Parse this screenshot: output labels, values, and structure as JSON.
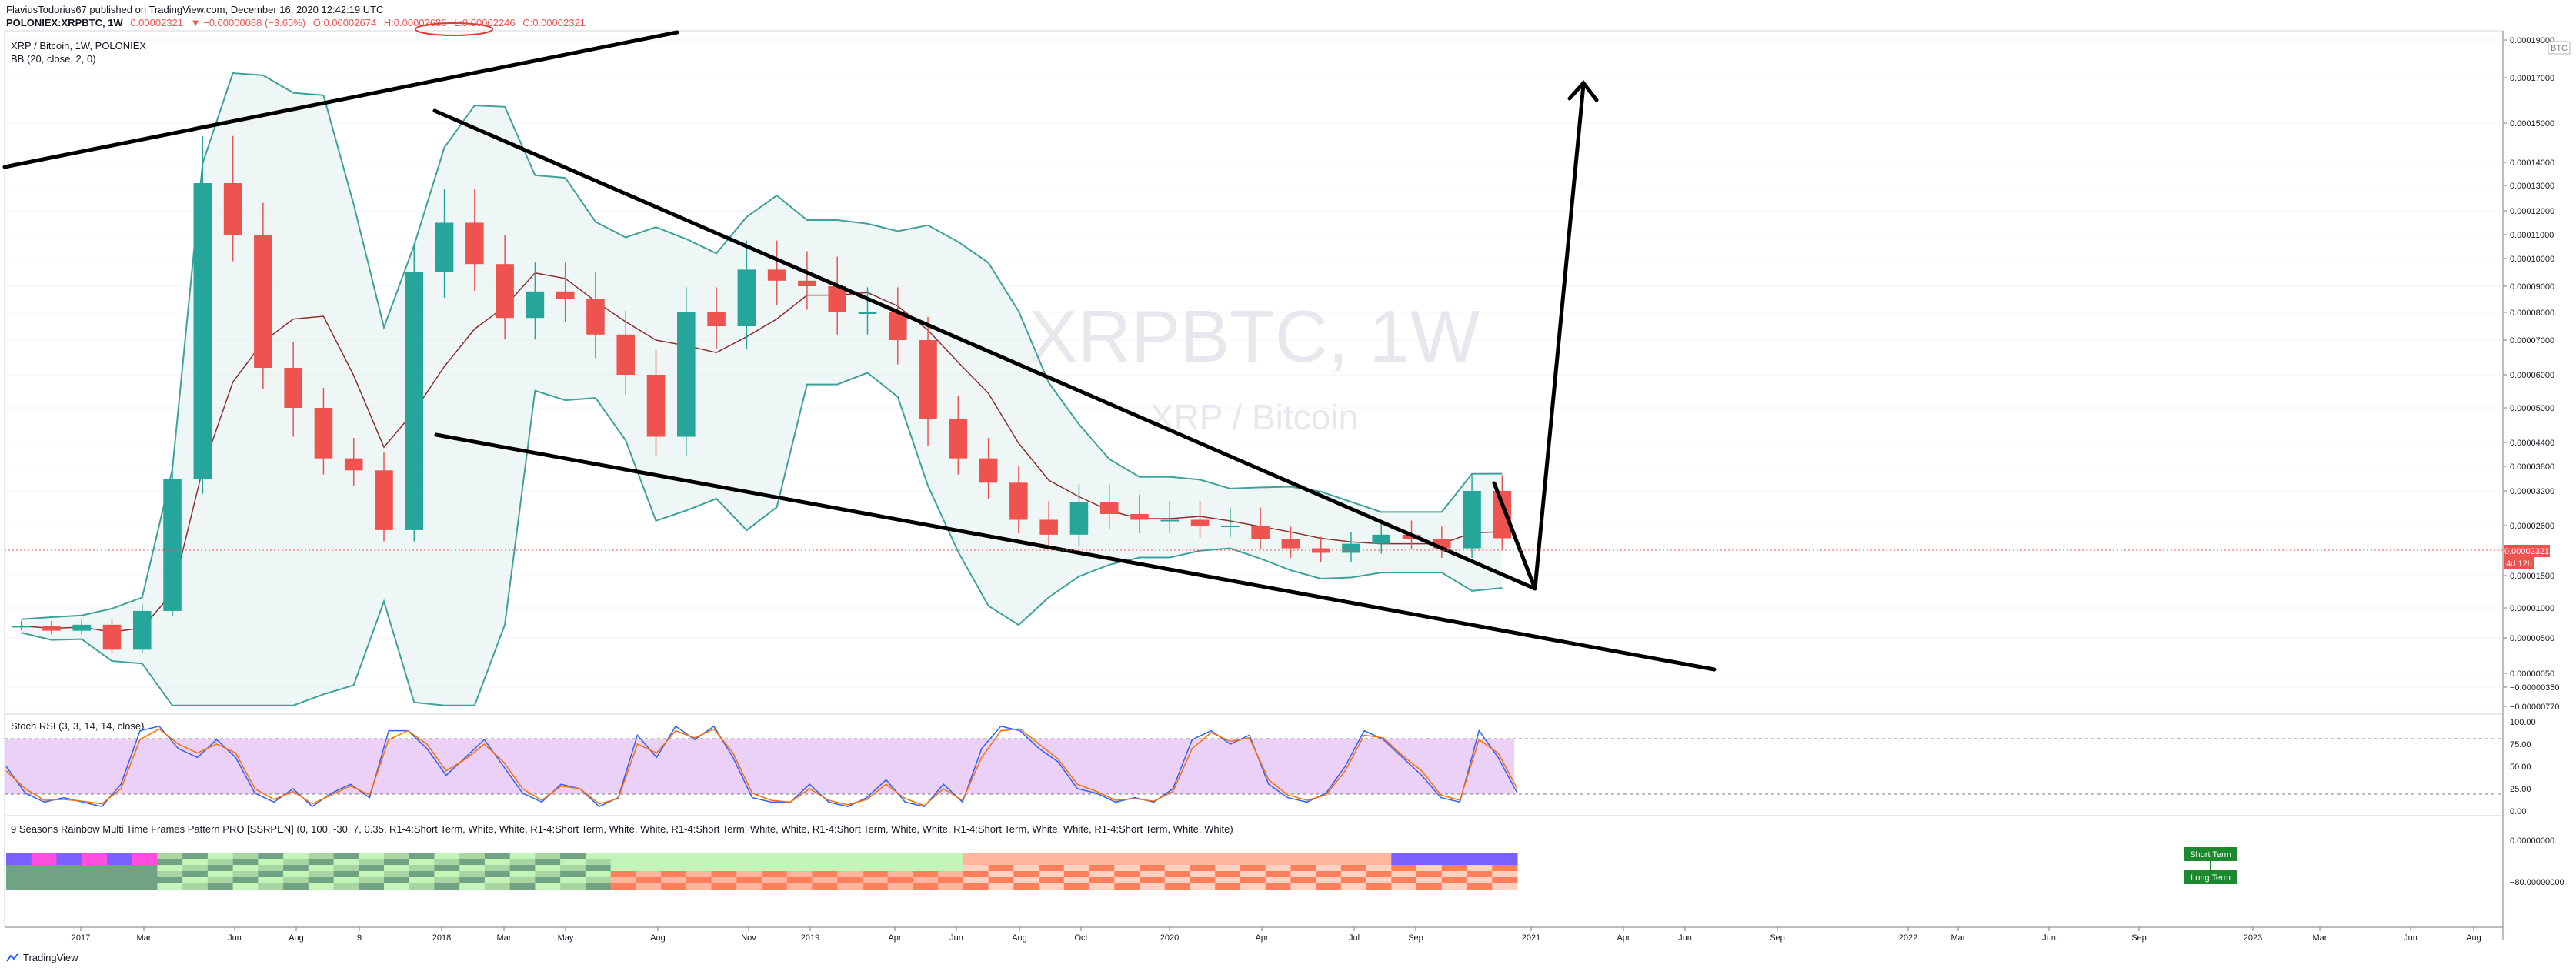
{
  "header": {
    "published": "FlaviusTodorius67 published on TradingView.com, December 16, 2020 12:42:19 UTC",
    "symbol": "POLONIEX:XRPBTC, 1W",
    "last": "0.00002321",
    "change": "▼ −0.00000088 (−3.65%)",
    "open": "O:0.00002674",
    "high": "H:0.00002686",
    "low": "L:0.00002246",
    "close": "C:0.00002321"
  },
  "chart_data": {
    "type": "candlestick",
    "title": "XRP / Bitcoin, 1W, POLONIEX",
    "indicator_label": "BB (20, close, 2, 0)",
    "watermark_main": "XRPBTC, 1W",
    "watermark_sub": "XRP / Bitcoin",
    "currency_tag": "BTC",
    "price_axis_ticks": [
      "0.00019000",
      "0.00017000",
      "0.00015000",
      "0.00014000",
      "0.00013000",
      "0.00012000",
      "0.00011000",
      "0.00010000",
      "0.00009000",
      "0.00008000",
      "0.00007000",
      "0.00006000",
      "0.00005000",
      "0.00004400",
      "0.00003800",
      "0.00003200",
      "0.00002600",
      "0.00001500",
      "0.00001000",
      "0.00000500",
      "0.00000050",
      "−0.00000350",
      "−0.00000770"
    ],
    "current_price_label": "0.00002321",
    "countdown_label": "4d 12h",
    "time_axis": [
      "2017",
      "Mar",
      "Jun",
      "Aug",
      "9",
      "2018",
      "Mar",
      "May",
      "Aug",
      "Nov",
      "2019",
      "Apr",
      "Jun",
      "Aug",
      "Oct",
      "2020",
      "Apr",
      "Jul",
      "Sep",
      "2021",
      "Apr",
      "Jun",
      "Sep",
      "2022",
      "Mar",
      "Jun",
      "Sep",
      "2023",
      "Mar",
      "Jun",
      "Aug"
    ],
    "price_series": [
      {
        "date": "2016-11",
        "close": 7e-06
      },
      {
        "date": "2016-12",
        "close": 6.2e-06
      },
      {
        "date": "2017-01",
        "close": 7.2e-06
      },
      {
        "date": "2017-02",
        "close": 3.5e-06
      },
      {
        "date": "2017-03",
        "close": 9.5e-06
      },
      {
        "date": "2017-04",
        "close": 3.5e-05
      },
      {
        "date": "2017-05",
        "close": 0.000131
      },
      {
        "date": "2017-06",
        "close": 0.00011
      },
      {
        "date": "2017-07",
        "close": 6.2e-05
      },
      {
        "date": "2017-08",
        "close": 5e-05
      },
      {
        "date": "2017-09",
        "close": 4e-05
      },
      {
        "date": "2017-10",
        "close": 3.7e-05
      },
      {
        "date": "2017-11",
        "close": 2.5e-05
      },
      {
        "date": "2017-12",
        "close": 9.5e-05
      },
      {
        "date": "2018-01",
        "close": 0.000115
      },
      {
        "date": "2018-02",
        "close": 9.8e-05
      },
      {
        "date": "2018-03",
        "close": 7.8e-05
      },
      {
        "date": "2018-04",
        "close": 8.8e-05
      },
      {
        "date": "2018-05",
        "close": 8.5e-05
      },
      {
        "date": "2018-06",
        "close": 7.2e-05
      },
      {
        "date": "2018-07",
        "close": 6e-05
      },
      {
        "date": "2018-08",
        "close": 4.5e-05
      },
      {
        "date": "2018-09",
        "close": 8e-05
      },
      {
        "date": "2018-10",
        "close": 7.5e-05
      },
      {
        "date": "2018-11",
        "close": 9.6e-05
      },
      {
        "date": "2018-12",
        "close": 9.2e-05
      },
      {
        "date": "2019-01",
        "close": 9e-05
      },
      {
        "date": "2019-02",
        "close": 8e-05
      },
      {
        "date": "2019-03",
        "close": 8e-05
      },
      {
        "date": "2019-04",
        "close": 7e-05
      },
      {
        "date": "2019-05",
        "close": 4.8e-05
      },
      {
        "date": "2019-06",
        "close": 4e-05
      },
      {
        "date": "2019-07",
        "close": 3.4e-05
      },
      {
        "date": "2019-08",
        "close": 2.7e-05
      },
      {
        "date": "2019-09",
        "close": 2.4e-05
      },
      {
        "date": "2019-10",
        "close": 3e-05
      },
      {
        "date": "2019-11",
        "close": 2.8e-05
      },
      {
        "date": "2019-12",
        "close": 2.7e-05
      },
      {
        "date": "2020-01",
        "close": 2.7e-05
      },
      {
        "date": "2020-02",
        "close": 2.6e-05
      },
      {
        "date": "2020-03",
        "close": 2.6e-05
      },
      {
        "date": "2020-04",
        "close": 2.3e-05
      },
      {
        "date": "2020-05",
        "close": 2.1e-05
      },
      {
        "date": "2020-06",
        "close": 2e-05
      },
      {
        "date": "2020-07",
        "close": 2.2e-05
      },
      {
        "date": "2020-08",
        "close": 2.4e-05
      },
      {
        "date": "2020-09",
        "close": 2.3e-05
      },
      {
        "date": "2020-10",
        "close": 2.1e-05
      },
      {
        "date": "2020-11",
        "close": 3.2e-05
      },
      {
        "date": "2020-12",
        "close": 2.321e-05
      }
    ],
    "stoch_rsi": {
      "label": "Stoch RSI (3, 3, 14, 14, close)",
      "ticks": [
        "100.00",
        "75.00",
        "50.00",
        "25.00",
        "0.00"
      ],
      "band_upper": 80,
      "band_lower": 20,
      "k": [
        50,
        20,
        10,
        15,
        10,
        5,
        30,
        90,
        95,
        70,
        60,
        80,
        60,
        20,
        10,
        25,
        5,
        20,
        30,
        15,
        90,
        90,
        70,
        40,
        60,
        80,
        50,
        20,
        10,
        30,
        25,
        5,
        15,
        85,
        60,
        95,
        80,
        95,
        60,
        15,
        10,
        10,
        30,
        10,
        5,
        15,
        35,
        10,
        5,
        30,
        10,
        70,
        95,
        90,
        70,
        55,
        25,
        20,
        10,
        15,
        10,
        25,
        80,
        90,
        75,
        85,
        30,
        15,
        10,
        20,
        50,
        90,
        80,
        60,
        40,
        15,
        10,
        90,
        60,
        20
      ],
      "d": [
        45,
        25,
        12,
        13,
        11,
        8,
        25,
        80,
        92,
        75,
        65,
        75,
        65,
        25,
        13,
        22,
        8,
        18,
        28,
        18,
        80,
        90,
        75,
        45,
        58,
        75,
        55,
        25,
        12,
        28,
        25,
        8,
        14,
        75,
        65,
        90,
        82,
        92,
        65,
        20,
        12,
        10,
        25,
        12,
        7,
        13,
        30,
        14,
        6,
        25,
        12,
        60,
        90,
        92,
        75,
        58,
        30,
        22,
        12,
        14,
        11,
        22,
        70,
        88,
        78,
        82,
        35,
        18,
        12,
        18,
        45,
        85,
        82,
        62,
        45,
        18,
        12,
        80,
        65,
        25
      ]
    },
    "rainbow_indicator": {
      "label": "9 Seasons Rainbow Multi Time Frames Pattern PRO [SSRPEN] (0, 100, -30, 7, 0.35, R1-4:Short Term, White, White, R1-4:Short Term, White, White, R1-4:Short Term, White, White, R1-4:Short Term, White, White, R1-4:Short Term, White, White, R1-4:Short Term, White, White)",
      "ticks": [
        "0.00000000",
        "−80.00000000"
      ],
      "legend": [
        "Short Term",
        "Long Term"
      ]
    },
    "annotations": [
      "upper resistance trendline",
      "falling wedge upper line",
      "falling wedge lower line",
      "projected breakout arrow"
    ]
  },
  "footer": {
    "brand": "TradingView"
  },
  "colors": {
    "up": "#26a69a",
    "down": "#ef5350",
    "bb_band": "#3fa19a",
    "bb_basis": "#8b2f2f",
    "stoch_fill": "#e8c9f7",
    "stoch_k": "#2962ff",
    "stoch_d": "#ff6d00"
  }
}
